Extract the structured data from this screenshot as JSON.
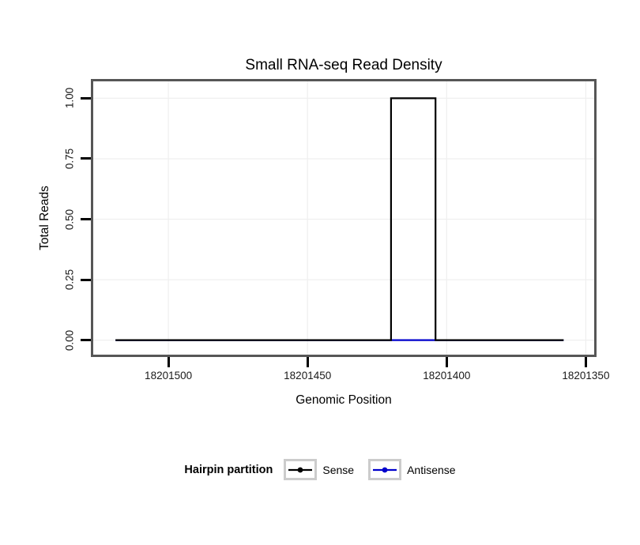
{
  "chart_data": {
    "type": "line",
    "title": "Small RNA-seq Read Density",
    "xlabel": "Genomic Position",
    "ylabel": "Total Reads",
    "legend_title": "Hairpin partition",
    "x_axis_reversed": true,
    "x_domain": [
      18201527,
      18201347
    ],
    "y_domain": [
      -0.06,
      1.07
    ],
    "ylim": [
      0,
      1
    ],
    "grid": "major-only",
    "legend_position": "bottom",
    "x_ticks": [
      {
        "value": 18201500,
        "label": "18201500"
      },
      {
        "value": 18201450,
        "label": "18201450"
      },
      {
        "value": 18201400,
        "label": "18201400"
      },
      {
        "value": 18201350,
        "label": "18201350"
      }
    ],
    "y_ticks": [
      {
        "value": 0.0,
        "label": "0.00"
      },
      {
        "value": 0.25,
        "label": "0.25"
      },
      {
        "value": 0.5,
        "label": "0.50"
      },
      {
        "value": 0.75,
        "label": "0.75"
      },
      {
        "value": 1.0,
        "label": "1.00"
      }
    ],
    "series": [
      {
        "name": "Sense",
        "color": "#000000",
        "points": [
          [
            18201519,
            0
          ],
          [
            18201420,
            0
          ],
          [
            18201420,
            1
          ],
          [
            18201404,
            1
          ],
          [
            18201404,
            0
          ],
          [
            18201358,
            0
          ]
        ]
      },
      {
        "name": "Antisense",
        "color": "#0000CC",
        "points": [
          [
            18201519,
            0
          ],
          [
            18201358,
            0
          ]
        ]
      }
    ]
  }
}
